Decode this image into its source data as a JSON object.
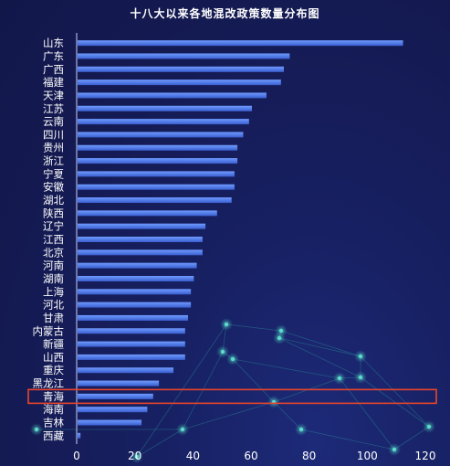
{
  "title": "十八大以来各地混改政策数量分布图",
  "colors": {
    "bar_top": "#6f9bff",
    "bar_bottom": "#3a5fd0",
    "axis": "#c8d2ff",
    "label": "#ffffff",
    "highlight": "#e8452c",
    "network": "#2fb3a8"
  },
  "highlight_category": "青海",
  "chart_data": {
    "type": "bar",
    "orientation": "horizontal",
    "categories": [
      "山东",
      "广东",
      "广西",
      "福建",
      "天津",
      "江苏",
      "云南",
      "四川",
      "贵州",
      "浙江",
      "宁夏",
      "安徽",
      "湖北",
      "陕西",
      "辽宁",
      "江西",
      "北京",
      "河南",
      "湖南",
      "上海",
      "河北",
      "甘肃",
      "内蒙古",
      "新疆",
      "山西",
      "重庆",
      "黑龙江",
      "青海",
      "海南",
      "吉林",
      "西藏"
    ],
    "values": [
      112,
      73,
      71,
      70,
      65,
      60,
      59,
      57,
      55,
      55,
      54,
      54,
      53,
      48,
      44,
      43,
      43,
      41,
      40,
      39,
      39,
      38,
      37,
      37,
      37,
      33,
      28,
      26,
      24,
      22,
      1
    ],
    "xlim": [
      0,
      120
    ],
    "xticks": [
      0,
      20,
      40,
      60,
      80,
      100,
      120
    ],
    "grid": false
  }
}
